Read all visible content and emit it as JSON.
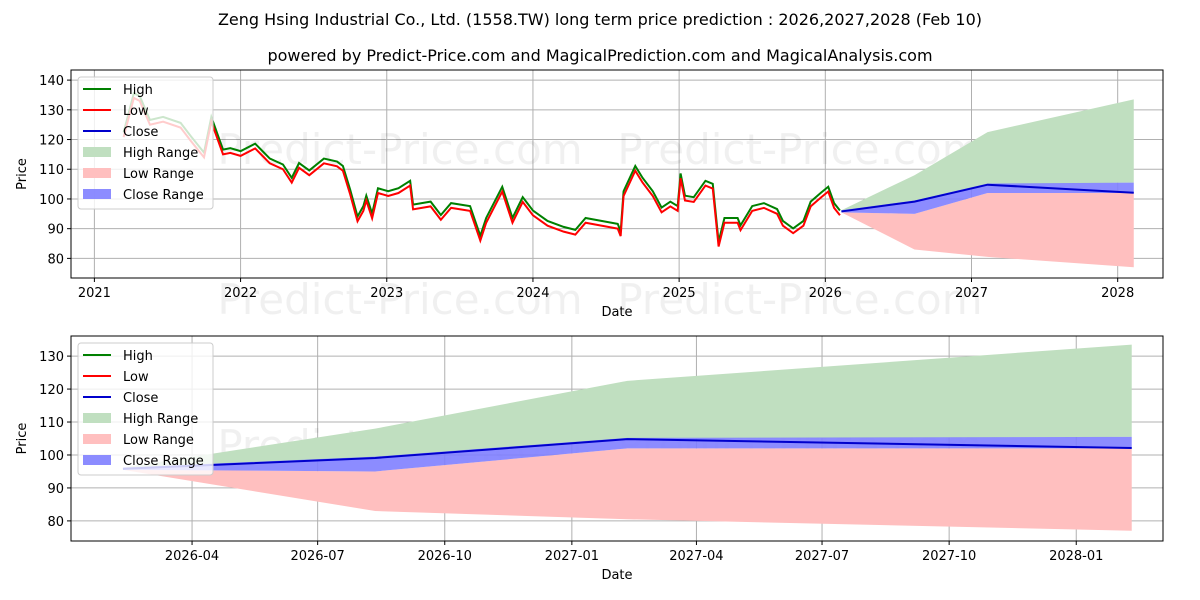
{
  "title": "Zeng Hsing Industrial Co., Ltd. (1558.TW) long term price prediction : 2026,2027,2028 (Feb 10)",
  "subtitle": "powered by Predict-Price.com and MagicalPrediction.com and MagicalAnalysis.com",
  "watermark": "Predict-Price.com",
  "colors": {
    "high": "#008000",
    "low": "#ff0000",
    "close": "#0000cc",
    "high_range": "#c0dfc0",
    "low_range": "#ffbfbf",
    "close_range": "#7f7fff"
  },
  "chart_data": [
    {
      "type": "line",
      "title": "",
      "xlabel": "Date",
      "ylabel": "Price",
      "xlim": [
        2020.84,
        2028.31
      ],
      "ylim": [
        73.4,
        143.4
      ],
      "grid": true,
      "legend_position": "top-left",
      "xticks": [
        {
          "v": 2021,
          "label": "2021"
        },
        {
          "v": 2022,
          "label": "2022"
        },
        {
          "v": 2023,
          "label": "2023"
        },
        {
          "v": 2024,
          "label": "2024"
        },
        {
          "v": 2025,
          "label": "2025"
        },
        {
          "v": 2026,
          "label": "2026"
        },
        {
          "v": 2027,
          "label": "2027"
        },
        {
          "v": 2028,
          "label": "2028"
        }
      ],
      "yticks": [
        80,
        90,
        100,
        110,
        120,
        130,
        140
      ],
      "legend": [
        "High",
        "Low",
        "Close",
        "High Range",
        "Low Range",
        "Close Range"
      ],
      "history_low": [
        [
          2021.2,
          120.8
        ],
        [
          2021.27,
          134
        ],
        [
          2021.31,
          133
        ],
        [
          2021.38,
          125
        ],
        [
          2021.47,
          126
        ],
        [
          2021.59,
          124
        ],
        [
          2021.66,
          119.5
        ],
        [
          2021.75,
          114
        ],
        [
          2021.8,
          126
        ],
        [
          2021.84,
          120.5
        ],
        [
          2021.88,
          115
        ],
        [
          2021.93,
          115.5
        ],
        [
          2022.0,
          114.5
        ],
        [
          2022.1,
          117
        ],
        [
          2022.15,
          114.5
        ],
        [
          2022.2,
          112
        ],
        [
          2022.29,
          110
        ],
        [
          2022.35,
          105.5
        ],
        [
          2022.4,
          110.5
        ],
        [
          2022.47,
          108
        ],
        [
          2022.57,
          112
        ],
        [
          2022.66,
          111
        ],
        [
          2022.7,
          109.5
        ],
        [
          2022.75,
          101.5
        ],
        [
          2022.8,
          92.5
        ],
        [
          2022.84,
          96
        ],
        [
          2022.86,
          99.5
        ],
        [
          2022.9,
          93.5
        ],
        [
          2022.94,
          102
        ],
        [
          2023.01,
          101
        ],
        [
          2023.08,
          102
        ],
        [
          2023.16,
          104.5
        ],
        [
          2023.18,
          96.5
        ],
        [
          2023.3,
          97.5
        ],
        [
          2023.37,
          93
        ],
        [
          2023.44,
          97
        ],
        [
          2023.57,
          96
        ],
        [
          2023.64,
          86
        ],
        [
          2023.68,
          92
        ],
        [
          2023.79,
          102.5
        ],
        [
          2023.86,
          92
        ],
        [
          2023.93,
          99
        ],
        [
          2024.0,
          94.5
        ],
        [
          2024.1,
          91
        ],
        [
          2024.21,
          89
        ],
        [
          2024.29,
          88
        ],
        [
          2024.36,
          92
        ],
        [
          2024.58,
          90
        ],
        [
          2024.6,
          87.5
        ],
        [
          2024.62,
          101
        ],
        [
          2024.7,
          109.5
        ],
        [
          2024.75,
          105.5
        ],
        [
          2024.82,
          101
        ],
        [
          2024.88,
          95.5
        ],
        [
          2024.94,
          97.5
        ],
        [
          2024.99,
          96
        ],
        [
          2025.01,
          107
        ],
        [
          2025.04,
          99.5
        ],
        [
          2025.1,
          99
        ],
        [
          2025.18,
          104.5
        ],
        [
          2025.23,
          103.5
        ],
        [
          2025.27,
          84
        ],
        [
          2025.31,
          92
        ],
        [
          2025.4,
          92
        ],
        [
          2025.42,
          89.5
        ],
        [
          2025.5,
          96
        ],
        [
          2025.58,
          97
        ],
        [
          2025.67,
          95
        ],
        [
          2025.71,
          91
        ],
        [
          2025.78,
          88.5
        ],
        [
          2025.85,
          91
        ],
        [
          2025.9,
          97.5
        ],
        [
          2025.97,
          100.5
        ],
        [
          2026.02,
          102.5
        ],
        [
          2026.06,
          97
        ],
        [
          2026.1,
          94.5
        ]
      ],
      "high_offset": 1.6
    },
    {
      "type": "area",
      "title": "",
      "xlabel": "Date",
      "ylabel": "Price",
      "xlim": [
        2026.007,
        2028.172
      ],
      "ylim": [
        73.9,
        136.1
      ],
      "grid": true,
      "legend_position": "top-left",
      "xticks": [
        {
          "v": 2026.247,
          "label": "2026-04"
        },
        {
          "v": 2026.496,
          "label": "2026-07"
        },
        {
          "v": 2026.748,
          "label": "2026-10"
        },
        {
          "v": 2027.0,
          "label": "2027-01"
        },
        {
          "v": 2027.247,
          "label": "2027-04"
        },
        {
          "v": 2027.496,
          "label": "2027-07"
        },
        {
          "v": 2027.748,
          "label": "2027-10"
        },
        {
          "v": 2028.0,
          "label": "2028-01"
        }
      ],
      "yticks": [
        80,
        90,
        100,
        110,
        120,
        130
      ],
      "legend": [
        "High",
        "Low",
        "Close",
        "High Range",
        "Low Range",
        "Close Range"
      ]
    }
  ],
  "forecast": {
    "x": [
      2026.11,
      2026.61,
      2027.11,
      2028.11
    ],
    "close": [
      95.8,
      99.1,
      104.8,
      102.1
    ],
    "high_range": [
      [
        95.8,
        96.2
      ],
      [
        99.1,
        108
      ],
      [
        104.8,
        122.5
      ],
      [
        105.5,
        133.5
      ]
    ],
    "low_range": [
      [
        95.5,
        95.5
      ],
      [
        83,
        95
      ],
      [
        80.5,
        102
      ],
      [
        77,
        102
      ]
    ],
    "close_range": [
      [
        95.5,
        96.2
      ],
      [
        95,
        99.5
      ],
      [
        102,
        105.2
      ],
      [
        102,
        105.5
      ]
    ]
  }
}
